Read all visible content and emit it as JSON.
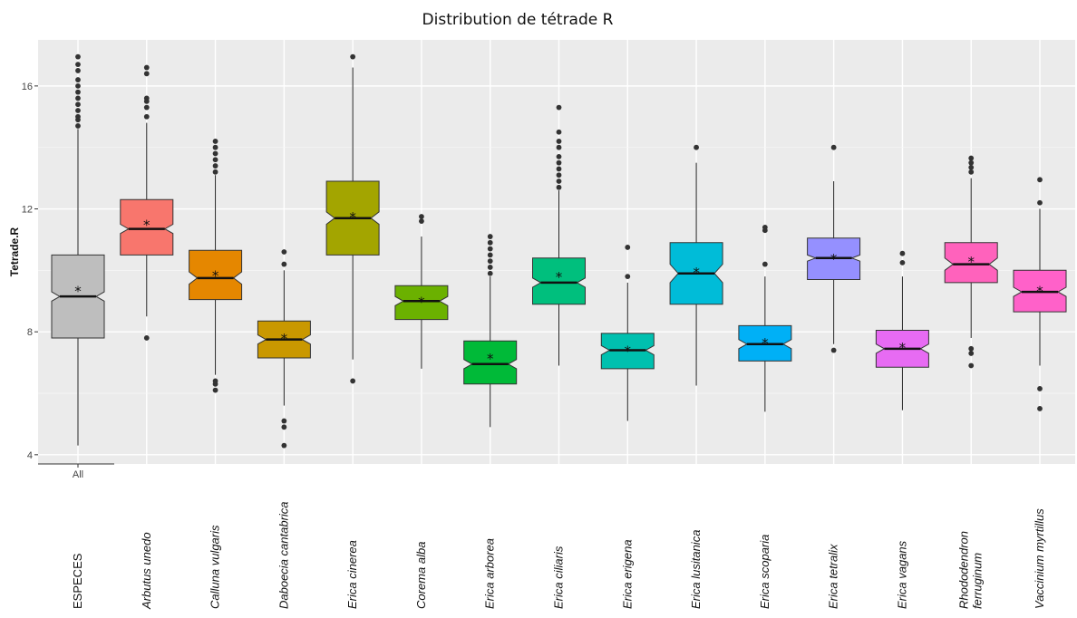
{
  "chart_data": {
    "type": "boxplot",
    "title": "Distribution de tétrade R",
    "ylabel": "Tetrade.R",
    "ylim": [
      3.7,
      17.5
    ],
    "yticks": [
      4,
      8,
      12,
      16
    ],
    "xtick_label": "All",
    "grid": true,
    "legend": "none",
    "categories": [
      "ESPECES",
      "Arbutus unedo",
      "Calluna vulgaris",
      "Daboecia cantabrica",
      "Erica cinerea",
      "Corema alba",
      "Erica arborea",
      "Erica ciliaris",
      "Erica erigena",
      "Erica lusitanica",
      "Erica scoparia",
      "Erica tetralix",
      "Erica vagans",
      "Rhododendron ferruginum",
      "Vaccinium myrtillus"
    ],
    "series": [
      {
        "name": "ESPECES",
        "color": "#bebebe",
        "whisker_low": 4.3,
        "q1": 7.8,
        "median": 9.15,
        "q3": 10.5,
        "whisker_high": 14.6,
        "notch": [
          9.0,
          9.3
        ],
        "mean": 9.35,
        "outliers": [
          14.7,
          14.9,
          15.0,
          15.2,
          15.4,
          15.6,
          15.8,
          16.0,
          16.2,
          16.5,
          16.7,
          16.95
        ]
      },
      {
        "name": "Arbutus unedo",
        "color": "#f8766d",
        "whisker_low": 8.5,
        "q1": 10.5,
        "median": 11.35,
        "q3": 12.3,
        "whisker_high": 14.8,
        "notch": [
          11.2,
          11.5
        ],
        "mean": 11.5,
        "outliers": [
          7.8,
          15.0,
          15.3,
          15.5,
          15.6,
          16.4,
          16.6
        ]
      },
      {
        "name": "Calluna vulgaris",
        "color": "#e58700",
        "whisker_low": 6.6,
        "q1": 9.05,
        "median": 9.75,
        "q3": 10.65,
        "whisker_high": 13.1,
        "notch": [
          9.55,
          9.95
        ],
        "mean": 9.85,
        "outliers": [
          6.1,
          6.3,
          6.4,
          13.2,
          13.4,
          13.6,
          13.8,
          14.0,
          14.2
        ]
      },
      {
        "name": "Daboecia cantabrica",
        "color": "#c99800",
        "whisker_low": 5.6,
        "q1": 7.15,
        "median": 7.75,
        "q3": 8.35,
        "whisker_high": 10.0,
        "notch": [
          7.6,
          7.9
        ],
        "mean": 7.8,
        "outliers": [
          4.3,
          4.9,
          5.1,
          10.2,
          10.6
        ]
      },
      {
        "name": "Erica cinerea",
        "color": "#a3a500",
        "whisker_low": 7.1,
        "q1": 10.5,
        "median": 11.7,
        "q3": 12.9,
        "whisker_high": 16.6,
        "notch": [
          11.5,
          11.9
        ],
        "mean": 11.75,
        "outliers": [
          6.4,
          16.95
        ]
      },
      {
        "name": "Corema alba",
        "color": "#6bb100",
        "whisker_low": 6.8,
        "q1": 8.4,
        "median": 9.0,
        "q3": 9.5,
        "whisker_high": 11.1,
        "notch": [
          8.85,
          9.15
        ],
        "mean": 9.0,
        "outliers": [
          11.6,
          11.75
        ]
      },
      {
        "name": "Erica arborea",
        "color": "#00ba38",
        "whisker_low": 4.9,
        "q1": 6.3,
        "median": 6.95,
        "q3": 7.7,
        "whisker_high": 9.8,
        "notch": [
          6.8,
          7.1
        ],
        "mean": 7.15,
        "outliers": [
          9.9,
          10.1,
          10.3,
          10.5,
          10.7,
          10.9,
          11.1
        ]
      },
      {
        "name": "Erica ciliaris",
        "color": "#00bf7d",
        "whisker_low": 6.9,
        "q1": 8.9,
        "median": 9.6,
        "q3": 10.4,
        "whisker_high": 12.6,
        "notch": [
          9.45,
          9.75
        ],
        "mean": 9.8,
        "outliers": [
          12.7,
          12.9,
          13.1,
          13.3,
          13.5,
          13.7,
          14.0,
          14.2,
          14.5,
          15.3
        ]
      },
      {
        "name": "Erica erigena",
        "color": "#00c0af",
        "whisker_low": 5.1,
        "q1": 6.8,
        "median": 7.4,
        "q3": 7.95,
        "whisker_high": 9.6,
        "notch": [
          7.25,
          7.55
        ],
        "mean": 7.4,
        "outliers": [
          9.8,
          10.75
        ]
      },
      {
        "name": "Erica lusitanica",
        "color": "#00bcd8",
        "whisker_low": 6.25,
        "q1": 8.9,
        "median": 9.9,
        "q3": 10.9,
        "whisker_high": 13.5,
        "notch": [
          9.6,
          10.2
        ],
        "mean": 9.95,
        "outliers": [
          14.0
        ]
      },
      {
        "name": "Erica scoparia",
        "color": "#00b0f6",
        "whisker_low": 5.4,
        "q1": 7.05,
        "median": 7.6,
        "q3": 8.2,
        "whisker_high": 9.8,
        "notch": [
          7.45,
          7.75
        ],
        "mean": 7.65,
        "outliers": [
          10.2,
          11.3,
          11.4
        ]
      },
      {
        "name": "Erica tetralix",
        "color": "#9590ff",
        "whisker_low": 7.6,
        "q1": 9.7,
        "median": 10.4,
        "q3": 11.05,
        "whisker_high": 12.9,
        "notch": [
          10.3,
          10.5
        ],
        "mean": 10.4,
        "outliers": [
          7.4,
          14.0
        ]
      },
      {
        "name": "Erica vagans",
        "color": "#e76bf3",
        "whisker_low": 5.45,
        "q1": 6.85,
        "median": 7.45,
        "q3": 8.05,
        "whisker_high": 9.8,
        "notch": [
          7.3,
          7.6
        ],
        "mean": 7.5,
        "outliers": [
          10.25,
          10.55
        ]
      },
      {
        "name": "Rhododendron ferruginum",
        "color": "#ff62bc",
        "whisker_low": 7.8,
        "q1": 9.6,
        "median": 10.2,
        "q3": 10.9,
        "whisker_high": 13.0,
        "notch": [
          10.0,
          10.4
        ],
        "mean": 10.3,
        "outliers": [
          6.9,
          7.3,
          7.45,
          13.2,
          13.35,
          13.5,
          13.65
        ]
      },
      {
        "name": "Vaccinium myrtillus",
        "color": "#ff61c9",
        "whisker_low": 6.9,
        "q1": 8.65,
        "median": 9.3,
        "q3": 10.0,
        "whisker_high": 12.0,
        "notch": [
          9.15,
          9.45
        ],
        "mean": 9.35,
        "outliers": [
          5.5,
          6.15,
          12.2,
          12.95
        ]
      }
    ]
  },
  "category_labels": [
    {
      "lines": [
        "ESPECES"
      ],
      "plain": true
    },
    {
      "lines": [
        "Arbutus unedo"
      ]
    },
    {
      "lines": [
        "Calluna vulgaris"
      ]
    },
    {
      "lines": [
        "Daboecia cantabrica"
      ]
    },
    {
      "lines": [
        "Erica cinerea"
      ]
    },
    {
      "lines": [
        "Corema alba"
      ]
    },
    {
      "lines": [
        "Erica arborea"
      ]
    },
    {
      "lines": [
        "Erica ciliaris"
      ]
    },
    {
      "lines": [
        "Erica erigena"
      ]
    },
    {
      "lines": [
        "Erica lusitanica"
      ]
    },
    {
      "lines": [
        "Erica scoparia"
      ]
    },
    {
      "lines": [
        "Erica tetralix"
      ]
    },
    {
      "lines": [
        "Erica vagans"
      ]
    },
    {
      "lines": [
        "Rhododendron",
        "ferruginum"
      ]
    },
    {
      "lines": [
        "Vaccinium myrtillus"
      ]
    }
  ]
}
